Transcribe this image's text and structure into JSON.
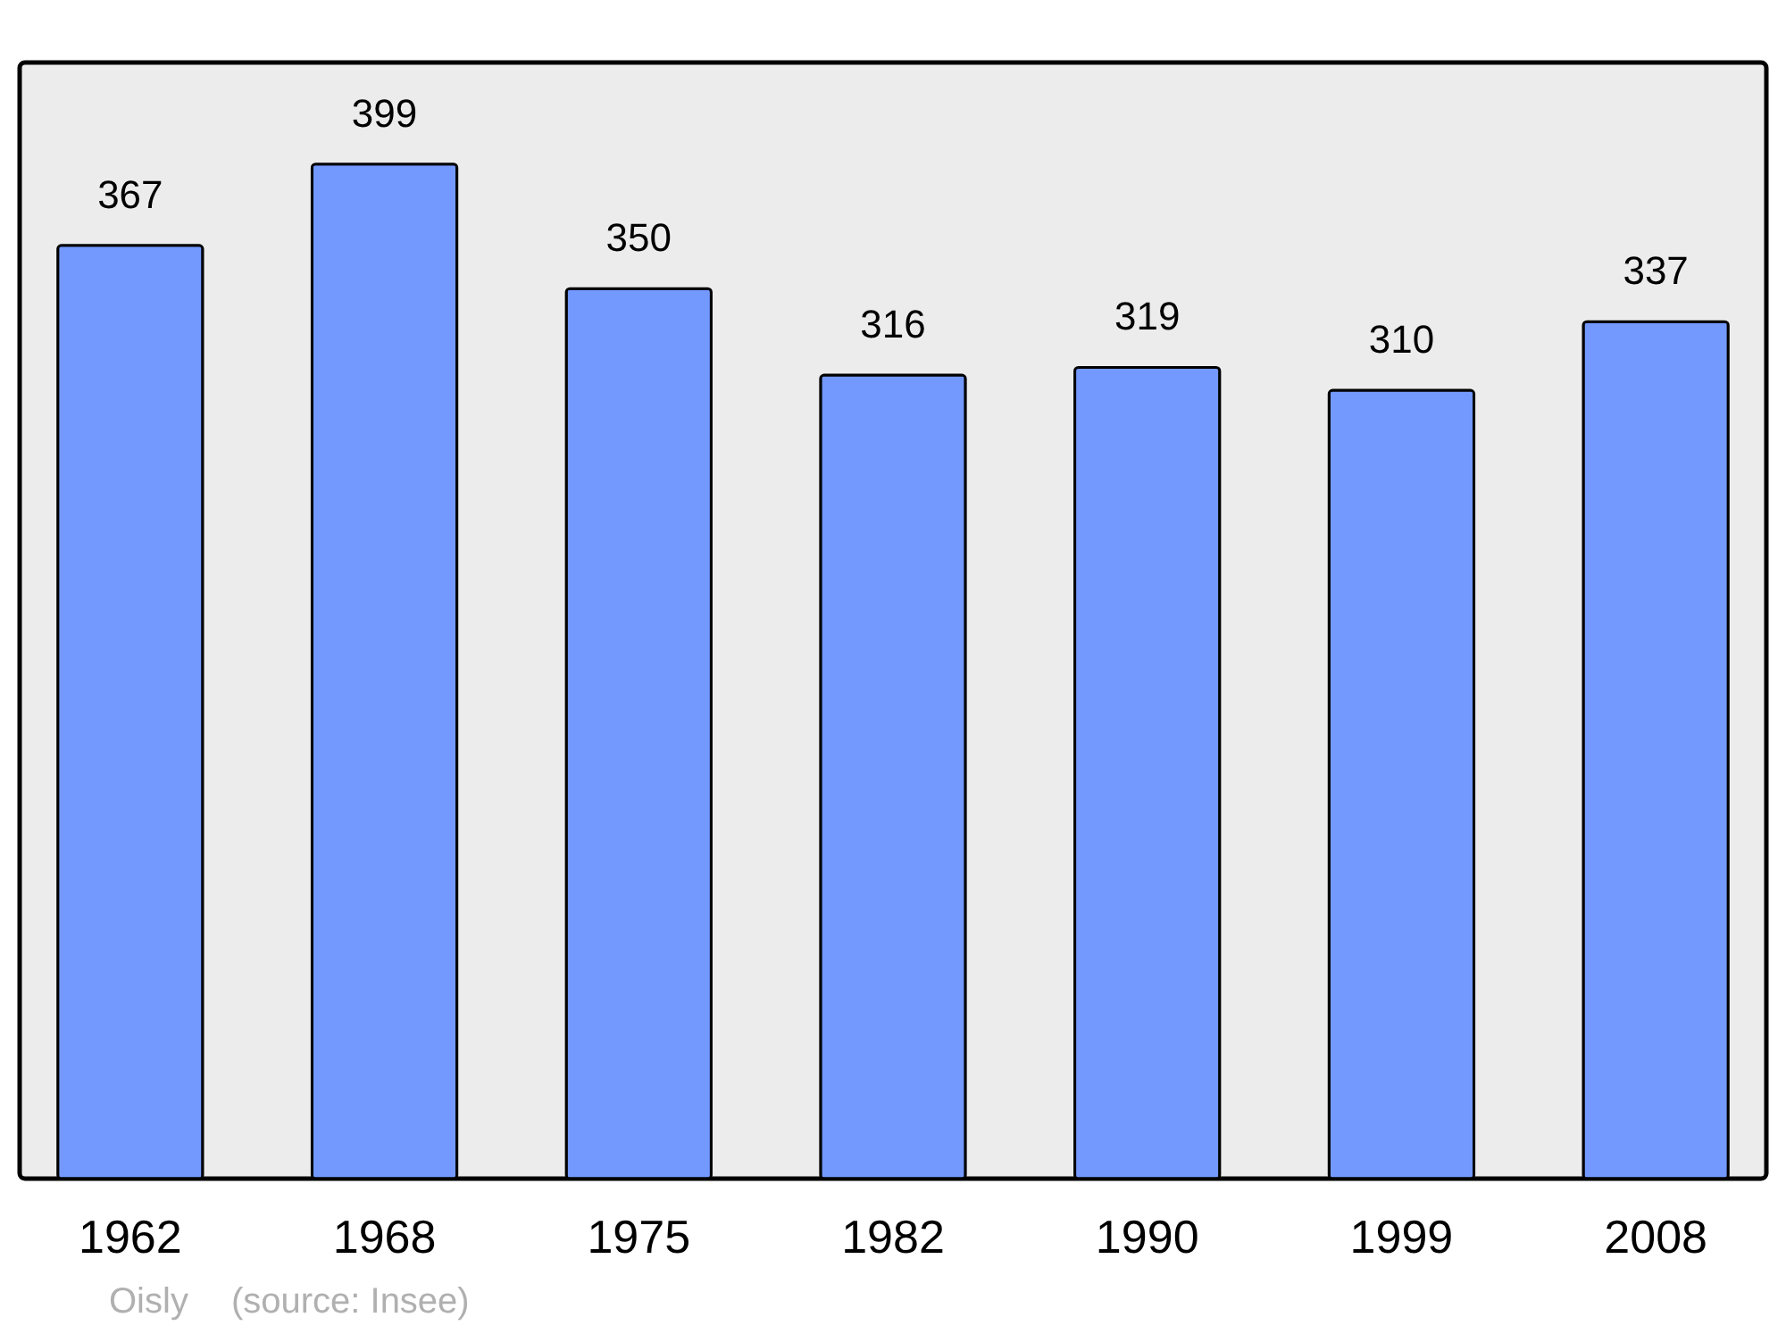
{
  "chart_data": {
    "type": "bar",
    "categories": [
      "1962",
      "1968",
      "1975",
      "1982",
      "1990",
      "1999",
      "2008"
    ],
    "values": [
      367,
      399,
      350,
      316,
      319,
      310,
      337
    ],
    "color": "#7399ff",
    "data_labels": true,
    "annotations": [
      "Oisly",
      "(source: Insee)"
    ]
  }
}
